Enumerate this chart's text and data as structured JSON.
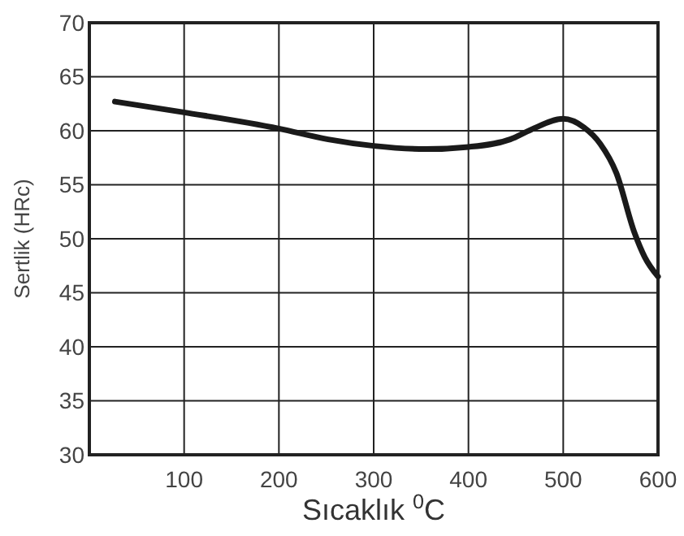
{
  "chart_data": {
    "type": "line",
    "xlabel": "Sıcaklık $^{0}$C",
    "ylabel": "Sertlik (HRc)",
    "xlim": [
      0,
      600
    ],
    "xticks": [
      100,
      200,
      300,
      400,
      500,
      600
    ],
    "ylim": [
      30,
      70
    ],
    "yticks": [
      30,
      35,
      40,
      45,
      50,
      55,
      60,
      65,
      70
    ],
    "grid": true,
    "series": [
      {
        "color": "#1a1a1a",
        "x": [
          27,
          100,
          200,
          252,
          300,
          355,
          400,
          444,
          466,
          500,
          522,
          539,
          556,
          575,
          586,
          600
        ],
        "values": [
          62.7,
          61.7,
          60.2,
          59.2,
          58.6,
          58.3,
          58.5,
          59.2,
          60.1,
          61.1,
          60.3,
          58.8,
          56.1,
          50.6,
          48.3,
          46.5
        ]
      }
    ]
  }
}
